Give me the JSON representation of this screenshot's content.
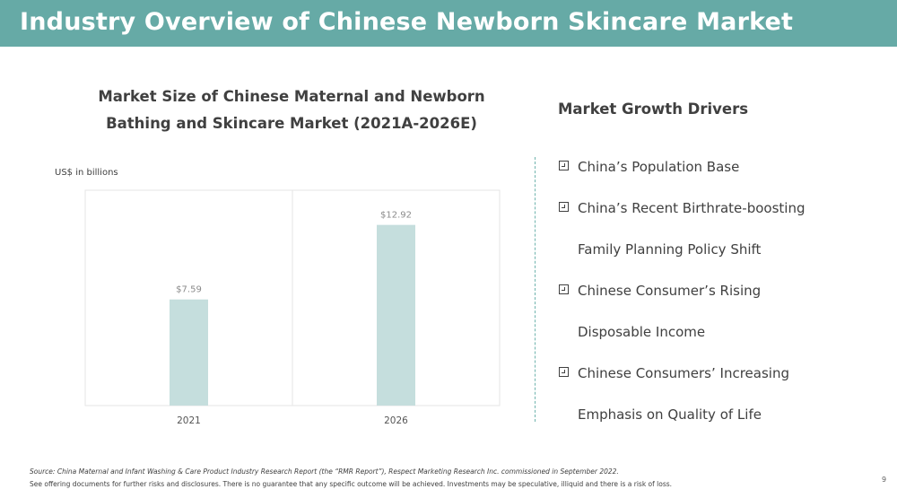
{
  "header": {
    "title": "Industry Overview of Chinese Newborn Skincare Market"
  },
  "chart_data": {
    "type": "bar",
    "title_lines": [
      "Market Size of Chinese Maternal and Newborn",
      "Bathing and Skincare Market (2021A-2026E)"
    ],
    "unit_label": "US$ in billions",
    "categories": [
      "2021",
      "2026"
    ],
    "values": [
      7.59,
      12.92
    ],
    "data_labels": [
      "$7.59",
      "$12.92"
    ],
    "ylim": [
      0,
      15.4
    ],
    "bar_color": "#c5dedd",
    "grid": false
  },
  "drivers": {
    "title": "Market Growth Drivers",
    "items": [
      {
        "lines": [
          "China’s Population Base"
        ]
      },
      {
        "lines": [
          "China’s Recent Birthrate-boosting",
          "Family Planning Policy Shift"
        ]
      },
      {
        "lines": [
          "Chinese Consumer’s Rising",
          "Disposable Income"
        ]
      },
      {
        "lines": [
          "Chinese Consumers’ Increasing",
          "Emphasis on Quality of Life"
        ]
      }
    ]
  },
  "footer": {
    "source": "Source: China Maternal and Infant Washing & Care Product Industry Research Report (the “RMR Report”), Respect Marketing Research Inc. commissioned in September 2022.",
    "disclaimer": "See offering documents for further risks and disclosures. There is no guarantee that any specific outcome will be achieved. Investments may be speculative, illiquid and there is a risk of loss.",
    "page_number": "9"
  },
  "colors": {
    "header_bg": "#66aaa6",
    "divider": "#6fb3ad"
  }
}
